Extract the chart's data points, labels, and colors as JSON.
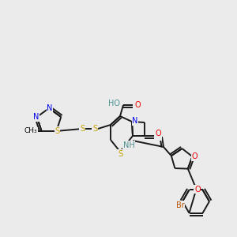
{
  "bg_color": "#ebebeb",
  "bond_color": "#1a1a1a",
  "bond_width": 1.4,
  "atom_colors": {
    "N": "#0000ee",
    "O": "#ee0000",
    "S": "#c8a000",
    "Br": "#bb5500",
    "NH": "#4a9090",
    "OH": "#4a9090",
    "S_teal": "#4a9090"
  },
  "figsize": [
    3.0,
    3.0
  ],
  "dpi": 100
}
